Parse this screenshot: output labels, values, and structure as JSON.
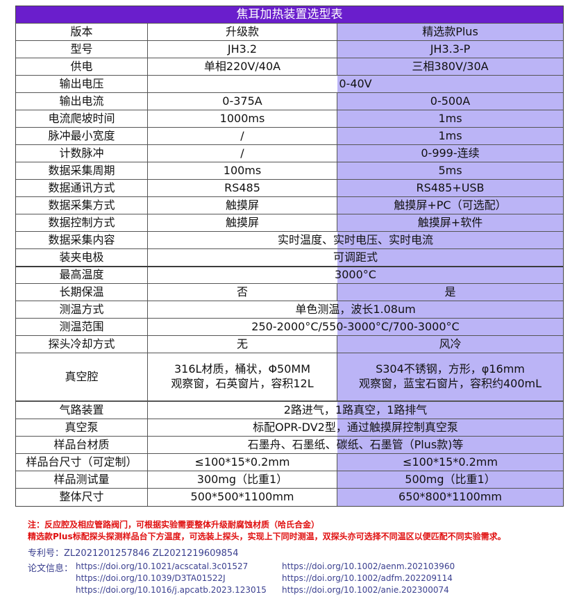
{
  "title": "焦耳加热装置选型表",
  "rows": [
    {
      "label": "版本",
      "a": "升级款",
      "b": "精选款Plus"
    },
    {
      "label": "型号",
      "a": "JH3.2",
      "b": "JH3.3-P"
    },
    {
      "label": "供电",
      "a": "单相220V/40A",
      "b": "三相380V/30A"
    },
    {
      "label": "输出电压",
      "merged": "0-40V"
    },
    {
      "label": "输出电流",
      "a": "0-375A",
      "b": "0-500A"
    },
    {
      "label": "电流爬坡时间",
      "a": "1000ms",
      "b": "1ms"
    },
    {
      "label": "脉冲最小宽度",
      "a": "/",
      "b": "1ms"
    },
    {
      "label": "计数脉冲",
      "a": "/",
      "b": "0-999-连续"
    },
    {
      "label": "数据采集周期",
      "a": "100ms",
      "b": "5ms"
    },
    {
      "label": "数据通讯方式",
      "a": "RS485",
      "b": "RS485+USB"
    },
    {
      "label": "数据采集方式",
      "a": "触摸屏",
      "b": "触摸屏+PC（可选配）"
    },
    {
      "label": "数据控制方式",
      "a": "触摸屏",
      "b": "触摸屏+软件"
    },
    {
      "label": "数据采集内容",
      "merged": "实时温度、实时电压、实时电流"
    },
    {
      "label": "装夹电极",
      "merged": "可调距式"
    },
    {
      "label": "最高温度",
      "merged": "3000°C"
    },
    {
      "label": "长期保温",
      "a": "否",
      "b": "是"
    },
    {
      "label": "测温方式",
      "merged": "单色测温，波长1.08um"
    },
    {
      "label": "测温范围",
      "merged": "250-2000°C/550-3000°C/700-3000°C"
    },
    {
      "label": "探头冷却方式",
      "a": "无",
      "b": "风冷"
    },
    {
      "label": "真空腔",
      "a": "316L材质，桶状，Φ50MM",
      "a2": "观察窗，石英窗片，容积12L",
      "b": "S304不锈钢，方形，φ16mm",
      "b2": "观察窗，蓝宝石窗片，容积约400mL"
    },
    {
      "label": "气路装置",
      "merged": "2路进气，1路真空，1路排气"
    },
    {
      "label": "真空泵",
      "merged": "标配OPR-DV2型，通过触摸屏控制真空泵"
    },
    {
      "label": "样品台材质",
      "merged": "石墨舟、石墨纸、碳纸、石墨管（Plus款)等"
    },
    {
      "label": "样品台尺寸（可定制）",
      "a": "≤100*15*0.2mm",
      "b": "≤100*15*0.2mm"
    },
    {
      "label": "样品测试量",
      "a": "300mg（比重1）",
      "b": "500mg（比重1）"
    },
    {
      "label": "整体尺寸",
      "a": "500*500*1100mm",
      "b": "650*800*1100mm"
    }
  ],
  "notes": [
    "注：反应腔及相应管路阀门，可根据实验需要整体升级耐腐蚀材质（哈氏合金）",
    "精选款Plus标配探头探测样品台下方温度，可选装上探头，实现上下同时测温，双探头亦可选择不同温区以便匹配不同实验需求。"
  ],
  "patent": "专利号：ZL2021201257846  ZL2021219609854",
  "papers_label": "论文信息：",
  "papers_left": [
    "https://doi.org/10.1021/acscatal.3c01527",
    "https://doi.org/10.1039/D3TA01522J",
    "https://doi.org/10.1016/j.apcatb.2023.123015"
  ],
  "papers_right": [
    "https://doi.org/10.1002/aenm.202103960",
    "https://doi.org/10.1002/adfm.202209114",
    "https://doi.org/10.1002/anie.202300074"
  ],
  "colors": {
    "header": "#6a1ecc",
    "plus_column": "#bbb4f6",
    "note": "#e01010",
    "info": "#3a3f8f"
  }
}
